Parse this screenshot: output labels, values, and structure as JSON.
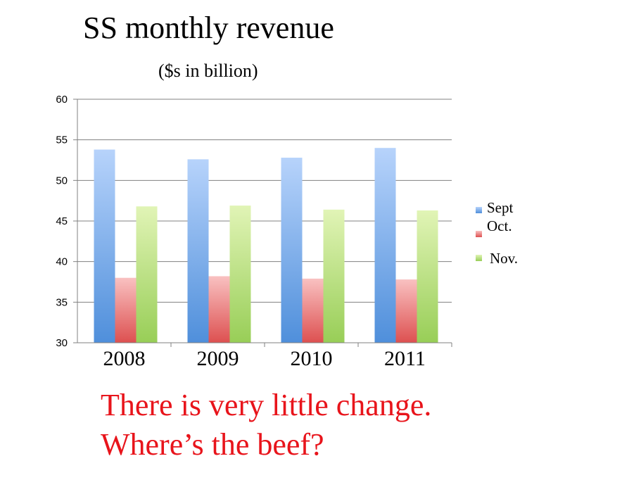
{
  "chart_data": {
    "type": "bar",
    "title": "SS monthly revenue",
    "subtitle": "($s in billion)",
    "categories": [
      "2008",
      "2009",
      "2010",
      "2011"
    ],
    "series": [
      {
        "name": "Sept",
        "values": [
          53.8,
          52.6,
          52.8,
          54.0
        ],
        "color_top": "#b7d3fb",
        "color_bottom": "#4f8fdb"
      },
      {
        "name": "Oct.",
        "values": [
          38.0,
          38.2,
          37.9,
          37.8
        ],
        "color_top": "#f9c1c1",
        "color_bottom": "#dd5050"
      },
      {
        "name": "Nov.",
        "values": [
          46.8,
          46.9,
          46.4,
          46.3
        ],
        "color_top": "#e1f4b6",
        "color_bottom": "#98ce57"
      }
    ],
    "ylim": [
      30,
      60
    ],
    "yticks": [
      "30",
      "35",
      "40",
      "45",
      "50",
      "55",
      "60"
    ],
    "grid": true,
    "legend_position": "right"
  },
  "annotation": {
    "line1": "There is very little change.",
    "line2": "Where’s the beef?"
  },
  "colors": {
    "annotation": "#e8141b",
    "grid": "#808080"
  }
}
